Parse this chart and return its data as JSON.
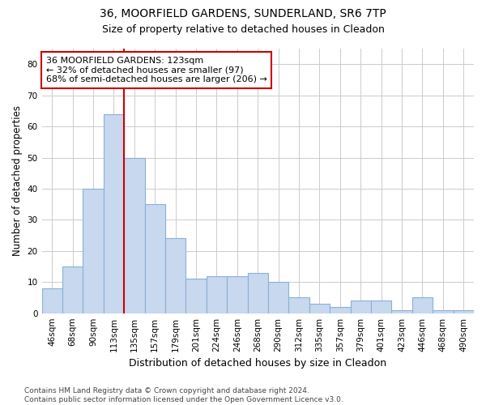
{
  "title1": "36, MOORFIELD GARDENS, SUNDERLAND, SR6 7TP",
  "title2": "Size of property relative to detached houses in Cleadon",
  "xlabel": "Distribution of detached houses by size in Cleadon",
  "ylabel": "Number of detached properties",
  "categories": [
    "46sqm",
    "68sqm",
    "90sqm",
    "113sqm",
    "135sqm",
    "157sqm",
    "179sqm",
    "201sqm",
    "224sqm",
    "246sqm",
    "268sqm",
    "290sqm",
    "312sqm",
    "335sqm",
    "357sqm",
    "379sqm",
    "401sqm",
    "423sqm",
    "446sqm",
    "468sqm",
    "490sqm"
  ],
  "values": [
    8,
    15,
    40,
    64,
    50,
    35,
    24,
    11,
    12,
    12,
    13,
    10,
    5,
    3,
    2,
    4,
    4,
    1,
    5,
    1,
    1
  ],
  "bar_color": "#c8d8ee",
  "bar_edge_color": "#8ab0d8",
  "vline_index": 3,
  "vline_color": "#cc0000",
  "annotation_text": "36 MOORFIELD GARDENS: 123sqm\n← 32% of detached houses are smaller (97)\n68% of semi-detached houses are larger (206) →",
  "annotation_box_facecolor": "white",
  "annotation_box_edgecolor": "#cc0000",
  "ylim": [
    0,
    85
  ],
  "yticks": [
    0,
    10,
    20,
    30,
    40,
    50,
    60,
    70,
    80
  ],
  "grid_color": "#cccccc",
  "plot_bg_color": "white",
  "fig_bg_color": "white",
  "title1_fontsize": 10,
  "title2_fontsize": 9,
  "xlabel_fontsize": 9,
  "ylabel_fontsize": 8.5,
  "tick_fontsize": 7.5,
  "annotation_fontsize": 8,
  "footer_fontsize": 6.5,
  "footer": "Contains HM Land Registry data © Crown copyright and database right 2024.\nContains public sector information licensed under the Open Government Licence v3.0."
}
